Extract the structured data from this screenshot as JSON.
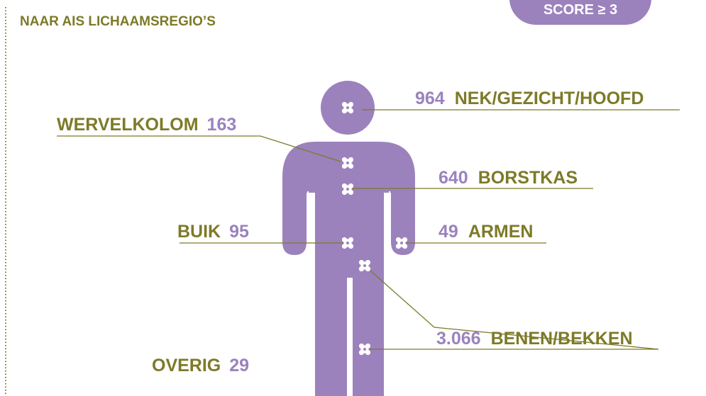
{
  "header": {
    "title": "NAAR AIS LICHAAMSREGIO’S"
  },
  "badge": {
    "label": "SCORE ≥ 3"
  },
  "regions": [
    {
      "name": "NEK/GEZICHT/HOOFD",
      "count": "964"
    },
    {
      "name": "WERVELKOLOM",
      "count": "163"
    },
    {
      "name": "BORSTKAS",
      "count": "640"
    },
    {
      "name": "BUIK",
      "count": "95"
    },
    {
      "name": "ARMEN",
      "count": "49"
    },
    {
      "name": "BENEN/BEKKEN",
      "count": "3.066"
    },
    {
      "name": "OVERIG",
      "count": "29"
    }
  ]
}
